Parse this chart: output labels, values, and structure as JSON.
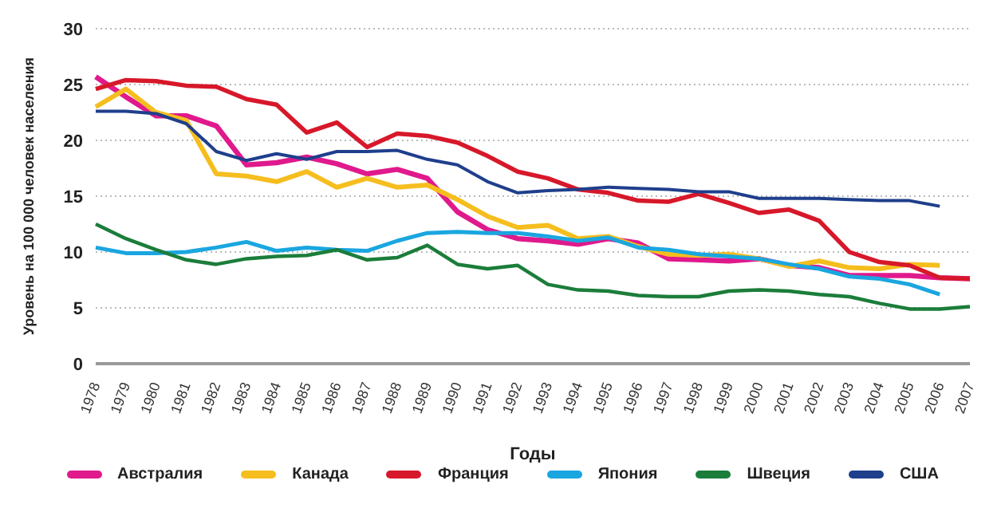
{
  "chart_data": {
    "type": "line",
    "xlabel": "Годы",
    "ylabel": "Уровень на 100 000 человек населения",
    "categories": [
      "1978",
      "1979",
      "1980",
      "1981",
      "1982",
      "1983",
      "1984",
      "1985",
      "1986",
      "1987",
      "1988",
      "1989",
      "1990",
      "1991",
      "1992",
      "1993",
      "1994",
      "1995",
      "1996",
      "1997",
      "1998",
      "1999",
      "2000",
      "2001",
      "2002",
      "2003",
      "2004",
      "2005",
      "2006",
      "2007"
    ],
    "series": [
      {
        "name": "Австралия",
        "color": "#e0198c",
        "values": [
          25.7,
          23.9,
          22.2,
          22.2,
          21.3,
          17.8,
          18.0,
          18.5,
          17.9,
          17.0,
          17.4,
          16.6,
          13.6,
          12.0,
          11.2,
          11.0,
          10.7,
          11.2,
          10.8,
          9.4,
          9.3,
          9.2,
          9.4,
          8.8,
          8.6,
          7.9,
          7.9,
          7.9,
          7.7,
          7.6
        ]
      },
      {
        "name": "Канада",
        "color": "#f5be1e",
        "values": [
          23.0,
          24.6,
          22.5,
          21.8,
          17.0,
          16.8,
          16.3,
          17.2,
          15.8,
          16.6,
          15.8,
          16.0,
          14.7,
          13.2,
          12.2,
          12.4,
          11.2,
          11.4,
          10.5,
          9.8,
          9.7,
          9.8,
          9.4,
          8.7,
          9.2,
          8.6,
          8.5,
          8.9,
          8.8,
          null
        ]
      },
      {
        "name": "Франция",
        "color": "#d7182a",
        "values": [
          24.6,
          25.4,
          25.3,
          24.9,
          24.8,
          23.7,
          23.2,
          20.7,
          21.6,
          19.4,
          20.6,
          20.4,
          19.8,
          18.6,
          17.2,
          16.6,
          15.6,
          15.3,
          14.6,
          14.5,
          15.2,
          14.4,
          13.5,
          13.8,
          12.8,
          10.0,
          9.1,
          8.8,
          7.7,
          7.6
        ]
      },
      {
        "name": "Япония",
        "color": "#1aa6e0",
        "values": [
          10.4,
          9.9,
          9.9,
          10.0,
          10.4,
          10.9,
          10.1,
          10.4,
          10.2,
          10.1,
          11.0,
          11.7,
          11.8,
          11.7,
          11.7,
          11.4,
          11.0,
          11.3,
          10.4,
          10.2,
          9.8,
          9.6,
          9.4,
          8.9,
          8.5,
          7.8,
          7.6,
          7.1,
          6.2,
          null
        ]
      },
      {
        "name": "Швеция",
        "color": "#1b7d3a",
        "values": [
          12.5,
          11.2,
          10.2,
          9.3,
          8.9,
          9.4,
          9.6,
          9.7,
          10.2,
          9.3,
          9.5,
          10.6,
          8.9,
          8.5,
          8.8,
          7.1,
          6.6,
          6.5,
          6.1,
          6.0,
          6.0,
          6.5,
          6.6,
          6.5,
          6.2,
          6.0,
          5.4,
          4.9,
          4.9,
          5.1
        ]
      },
      {
        "name": "США",
        "color": "#1f3f8c",
        "values": [
          22.6,
          22.6,
          22.4,
          21.5,
          19.0,
          18.2,
          18.8,
          18.3,
          19.0,
          19.0,
          19.1,
          18.3,
          17.8,
          16.3,
          15.3,
          15.5,
          15.6,
          15.8,
          15.7,
          15.6,
          15.4,
          15.4,
          14.8,
          14.8,
          14.8,
          14.7,
          14.6,
          14.6,
          14.1,
          null
        ]
      }
    ],
    "ylim": [
      0,
      30
    ],
    "yticks": [
      0,
      5,
      10,
      15,
      20,
      25,
      30
    ],
    "grid": "y",
    "legend": "bottom",
    "marker": "none",
    "line_style": "solid"
  }
}
